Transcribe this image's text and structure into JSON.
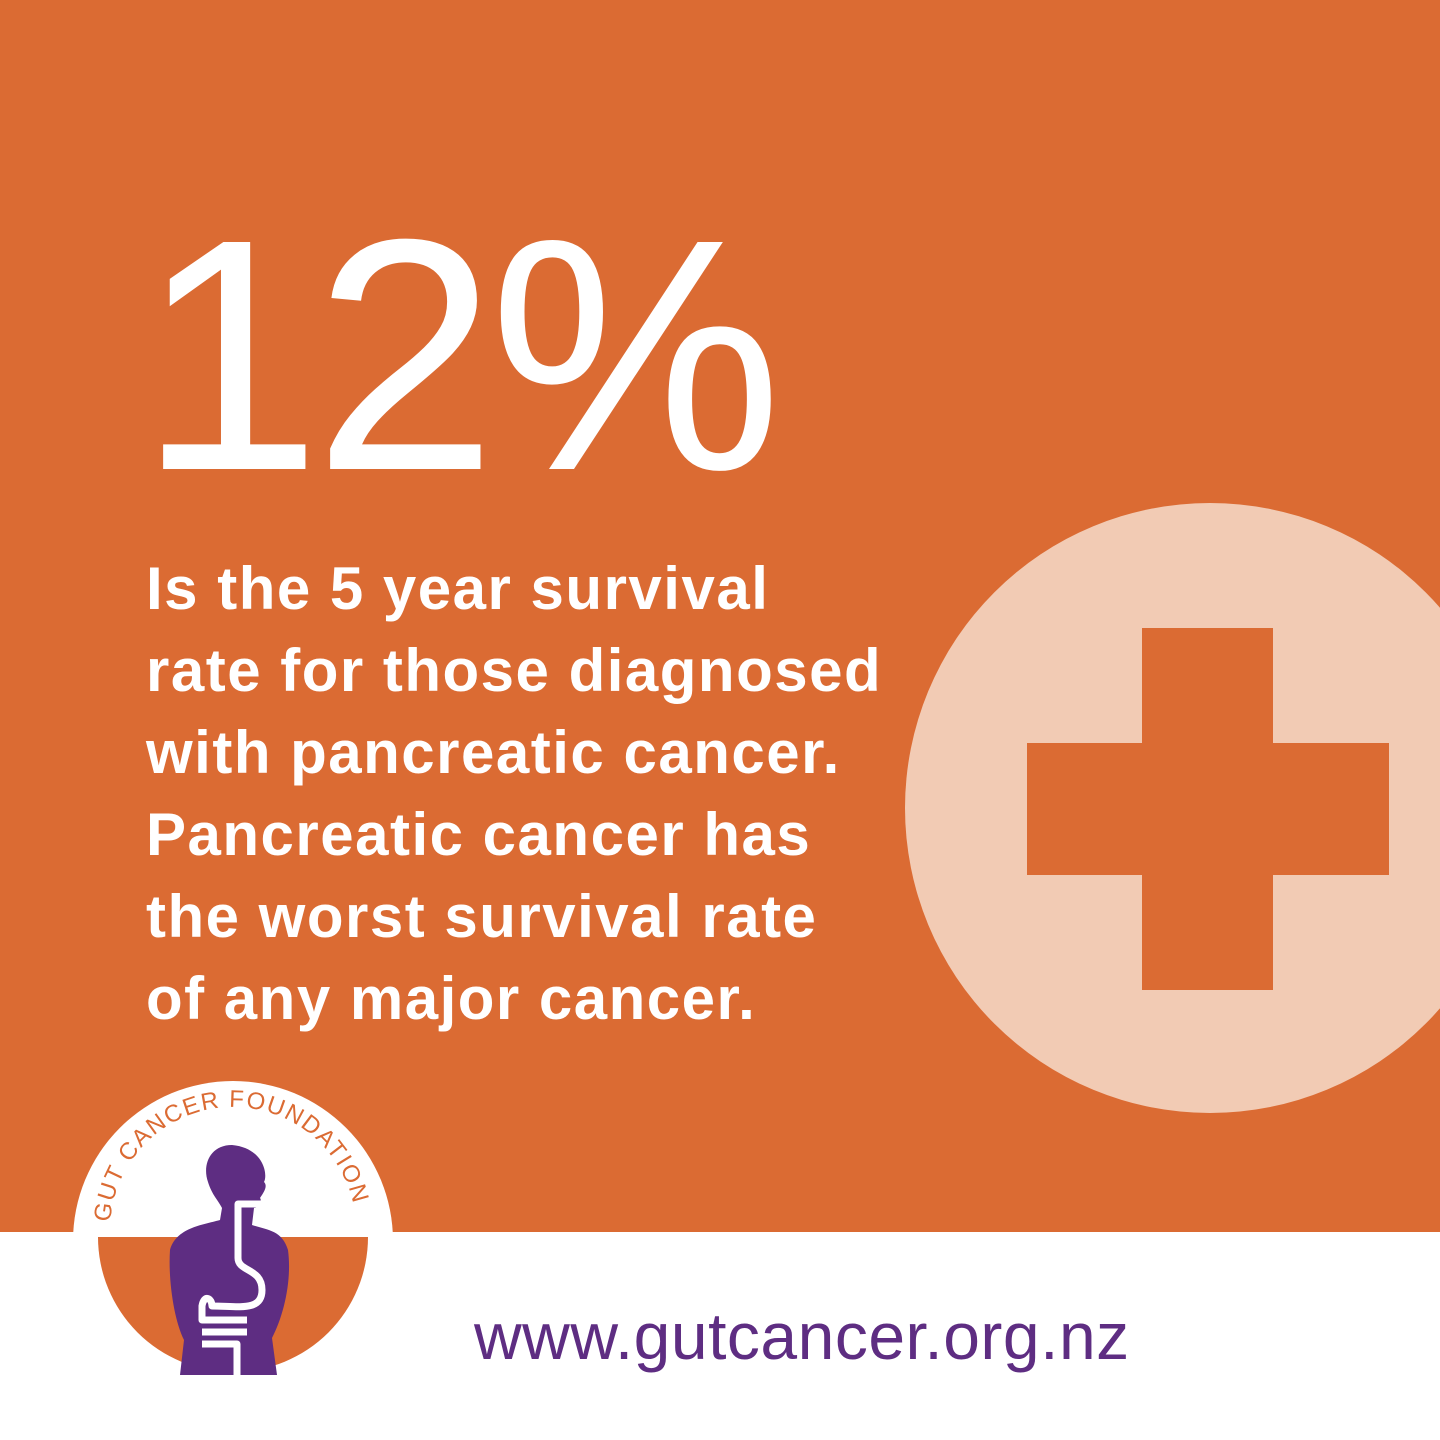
{
  "headline": {
    "stat": "12%"
  },
  "body_lines": [
    "Is the 5 year survival",
    "rate for those diagnosed",
    "with pancreatic cancer.",
    "Pancreatic cancer has",
    "the worst survival rate",
    "of any major cancer."
  ],
  "decoration": {
    "icon": "medical-cross-icon"
  },
  "logo": {
    "text": "GUT CANCER FOUNDATION"
  },
  "footer": {
    "url": "www.gutcancer.org.nz"
  },
  "colors": {
    "orange": "#DB6B33",
    "peach": "#F2CBB4",
    "purple": "#5E2D82",
    "white": "#FFFFFF"
  }
}
